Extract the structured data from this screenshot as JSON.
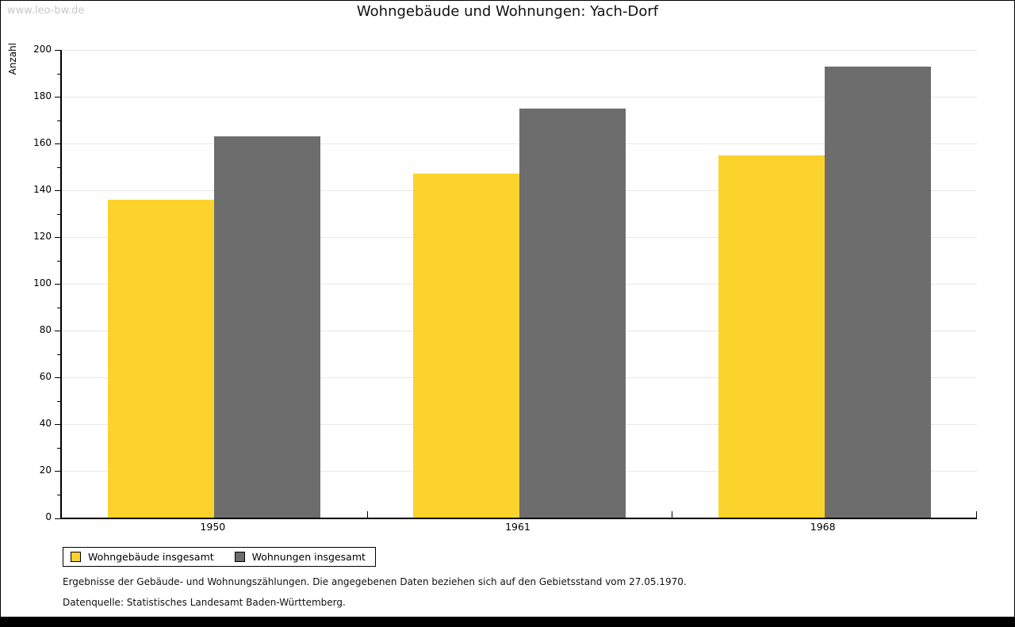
{
  "watermark": "www.leo-bw.de",
  "chart_data": {
    "type": "bar",
    "title": "Wohngebäude und Wohnungen: Yach-Dorf",
    "ylabel": "Anzahl",
    "xlabel": "",
    "categories": [
      "1950",
      "1961",
      "1968"
    ],
    "series": [
      {
        "name": "Wohngebäude insgesamt",
        "color": "#FCD32D",
        "values": [
          136,
          147,
          155
        ]
      },
      {
        "name": "Wohnungen insgesamt",
        "color": "#6D6D6D",
        "values": [
          163,
          175,
          193
        ]
      }
    ],
    "ylim": [
      0,
      200
    ],
    "y_tick_step": 20,
    "y_minor_tick_step": 10,
    "grid": "horizontal",
    "legend_position": "bottom-left"
  },
  "footnotes": [
    "Ergebnisse der Gebäude- und Wohnungszählungen. Die angegebenen Daten beziehen sich auf den Gebietsstand vom 27.05.1970.",
    "Datenquelle: Statistisches Landesamt Baden-Württemberg."
  ]
}
